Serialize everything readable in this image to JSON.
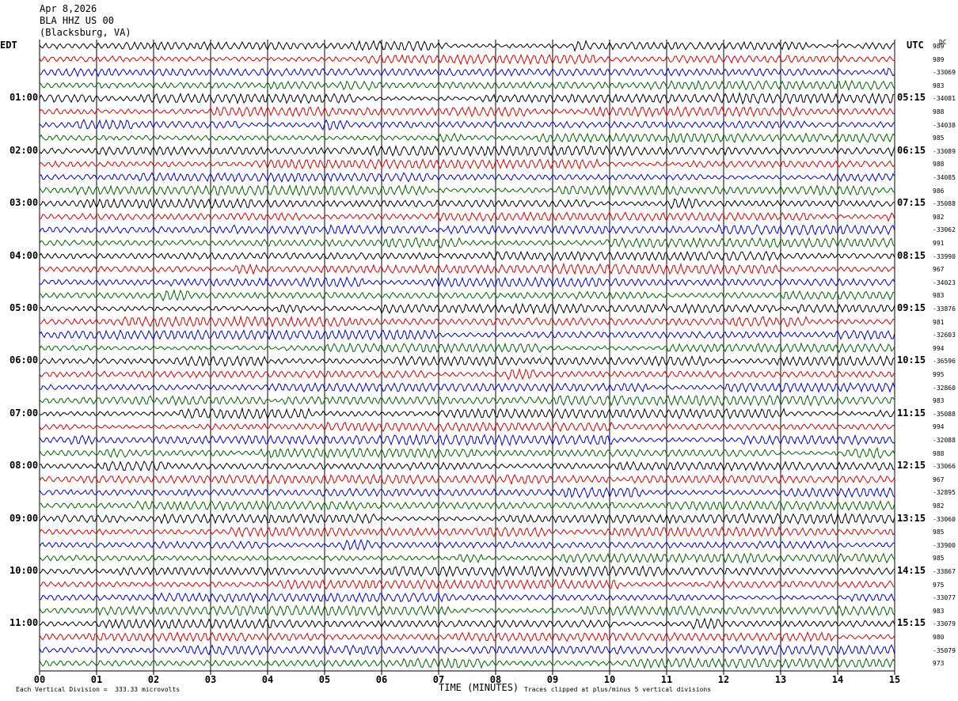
{
  "header": {
    "date": "Apr 8,2026",
    "station": "BLA HHZ US 00",
    "location": "(Blacksburg, VA)"
  },
  "left_tz": "EDT",
  "right_tz": "UTC",
  "dc_label": "DC",
  "footer": {
    "xlabel": "TIME (MINUTES)",
    "scale_note": "Each Vertical Division =  333.33 microvolts",
    "clip_note": "Traces clipped at plus/minus 5 vertical divisions"
  },
  "chart_data": {
    "type": "line",
    "title": "",
    "xlabel": "TIME (MINUTES)",
    "xlim": [
      0,
      15
    ],
    "x_ticks": [
      "00",
      "01",
      "02",
      "03",
      "04",
      "05",
      "06",
      "07",
      "08",
      "09",
      "10",
      "11",
      "12",
      "13",
      "14",
      "15"
    ],
    "trace_colors": [
      "#000000",
      "#dd0000",
      "#0000dd",
      "#006400"
    ],
    "trace_count": 48,
    "traces_per_hour": 4,
    "left_hour_labels": [
      "01:00",
      "02:00",
      "03:00",
      "04:00",
      "05:00",
      "06:00",
      "07:00",
      "08:00",
      "09:00",
      "10:00",
      "11:00"
    ],
    "right_hour_labels": [
      "05:15",
      "06:15",
      "07:15",
      "08:15",
      "09:15",
      "10:15",
      "11:15",
      "12:15",
      "13:15",
      "14:15",
      "15:15"
    ],
    "dc_values": [
      "989",
      "989",
      "-33069",
      "983",
      "-34081",
      "988",
      "-34038",
      "985",
      "-33089",
      "988",
      "-34085",
      "986",
      "-35088",
      "982",
      "-33062",
      "991",
      "-33990",
      "967",
      "-34023",
      "983",
      "-33876",
      "981",
      "-32603",
      "994",
      "-36596",
      "995",
      "-32860",
      "983",
      "-35088",
      "994",
      "-32088",
      "988",
      "-33066",
      "967",
      "-32895",
      "982",
      "-33060",
      "985",
      "-33900",
      "985",
      "-33867",
      "975",
      "-33077",
      "983",
      "-33079",
      "980",
      "-35079",
      "973"
    ]
  }
}
